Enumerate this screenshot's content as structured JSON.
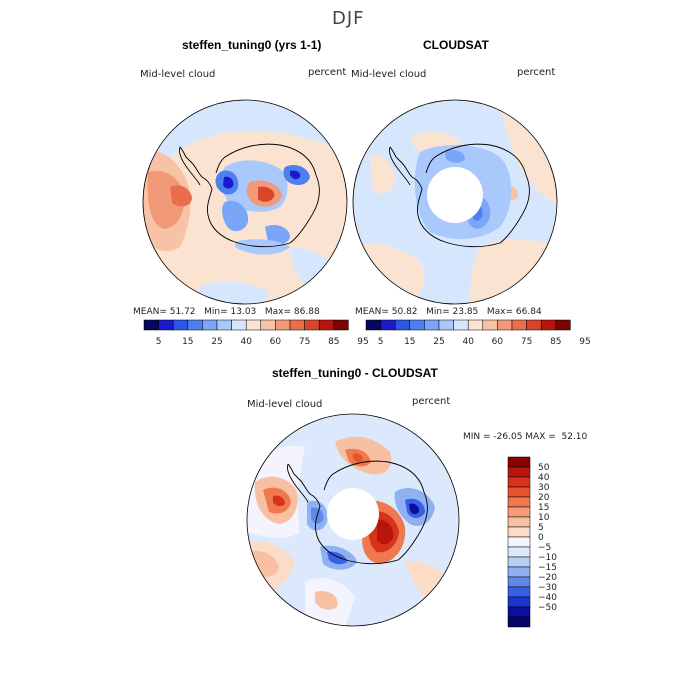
{
  "season": "DJF",
  "panels": [
    {
      "title": "steffen_tuning0 (yrs 1-1)",
      "variable": "Mid-level cloud",
      "units": "percent",
      "stats": {
        "mean_label": "MEAN=",
        "mean": "51.72",
        "min_label": "Min=",
        "min": "13.03",
        "max_label": "Max=",
        "max": "86.88"
      }
    },
    {
      "title": "CLOUDSAT",
      "variable": "Mid-level cloud",
      "units": "percent",
      "stats": {
        "mean_label": "MEAN=",
        "mean": "50.82",
        "min_label": "Min=",
        "min": "23.85",
        "max_label": "Max=",
        "max": "66.84"
      }
    },
    {
      "title": "steffen_tuning0 - CLOUDSAT",
      "variable": "Mid-level cloud",
      "units": "percent",
      "stats_line": "MIN = -26.05 MAX =  52.10"
    }
  ],
  "colorbar_abs": {
    "colors": [
      "#08085e",
      "#1a1acc",
      "#2d55e6",
      "#4c7ff0",
      "#7aa6f7",
      "#a9c8fb",
      "#d6e7fd",
      "#fbe3d2",
      "#f8c2a6",
      "#f29a78",
      "#e96e4c",
      "#d9452a",
      "#b8160c",
      "#7d0404"
    ],
    "labels": [
      "5",
      "15",
      "25",
      "40",
      "60",
      "75",
      "85",
      "95"
    ]
  },
  "colorbar_diff": {
    "colors": [
      "#8b0000",
      "#b8160c",
      "#d9321a",
      "#e9532c",
      "#f0784e",
      "#f49c78",
      "#f8c0a3",
      "#fbdcc8",
      "#f4f4ff",
      "#dce8fb",
      "#b8d0f7",
      "#8fb0f1",
      "#5f88ea",
      "#3860e4",
      "#1d35d0",
      "#0d0d9e",
      "#050563"
    ],
    "labels": [
      "50",
      "40",
      "30",
      "20",
      "15",
      "10",
      "5",
      "0",
      "−5",
      "−10",
      "−15",
      "−20",
      "−30",
      "−40",
      "−50"
    ]
  },
  "colors": {
    "land_outline": "#000000",
    "pole_mask": "#ffffff"
  }
}
